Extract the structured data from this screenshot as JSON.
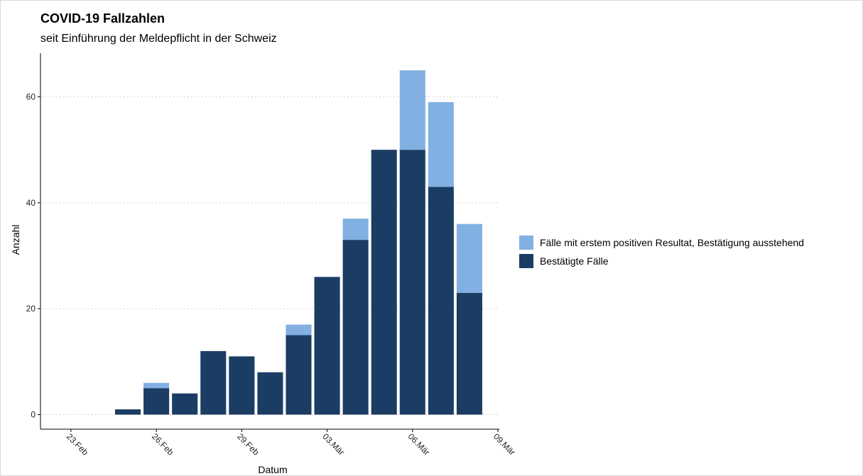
{
  "title": "COVID-19 Fallzahlen",
  "subtitle": "seit Einführung der Meldepflicht in der Schweiz",
  "colors": {
    "confirmed": "#1b3d63",
    "pending": "#82b0e2",
    "grid": "#c8c8c8",
    "axis": "#000000"
  },
  "chart_data": {
    "type": "bar",
    "stacked": true,
    "xlabel": "Datum",
    "ylabel": "Anzahl",
    "ylim": [
      0,
      66
    ],
    "yticks": [
      0,
      20,
      40,
      60
    ],
    "ytick_labels": [
      "0",
      "20",
      "40",
      "60"
    ],
    "xlim": [
      "2020-02-23",
      "2020-03-09"
    ],
    "xticks": [
      "2020-02-23",
      "2020-02-26",
      "2020-02-29",
      "2020-03-03",
      "2020-03-06",
      "2020-03-09"
    ],
    "xtick_labels": [
      "23.Feb",
      "26.Feb",
      "29.Feb",
      "03.Mär",
      "06.Mär",
      "09.Mär"
    ],
    "grid": "horizontal dotted",
    "legend_position": "right",
    "x": [
      "2020-02-25",
      "2020-02-26",
      "2020-02-27",
      "2020-02-28",
      "2020-02-29",
      "2020-03-01",
      "2020-03-02",
      "2020-03-03",
      "2020-03-04",
      "2020-03-05",
      "2020-03-06",
      "2020-03-07",
      "2020-03-08"
    ],
    "series": [
      {
        "name": "Bestätigte Fälle",
        "values": [
          1,
          5,
          4,
          12,
          11,
          8,
          15,
          26,
          33,
          50,
          50,
          43,
          23
        ]
      },
      {
        "name": "Fälle mit erstem positiven Resultat, Bestätigung ausstehend",
        "values": [
          0,
          1,
          0,
          0,
          0,
          0,
          2,
          0,
          4,
          0,
          15,
          16,
          13
        ]
      }
    ]
  }
}
